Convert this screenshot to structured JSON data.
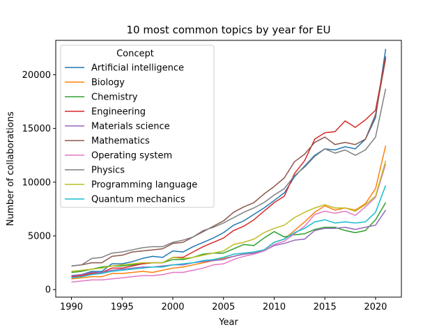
{
  "chart_data": {
    "type": "line",
    "title": "10 most common topics by year for EU",
    "xlabel": "Year",
    "ylabel": "Number of collaborations",
    "xlim": [
      1988.45,
      2022.55
    ],
    "ylim": [
      -700,
      23200
    ],
    "xticks": [
      1990,
      1995,
      2000,
      2005,
      2010,
      2015,
      2020
    ],
    "yticks": [
      0,
      5000,
      10000,
      15000,
      20000
    ],
    "grid": false,
    "legend": {
      "title": "Concept",
      "placement": "top-left"
    },
    "x": [
      1990,
      1991,
      1992,
      1993,
      1994,
      1995,
      1996,
      1997,
      1998,
      1999,
      2000,
      2001,
      2002,
      2003,
      2004,
      2005,
      2006,
      2007,
      2008,
      2009,
      2010,
      2011,
      2012,
      2013,
      2014,
      2015,
      2016,
      2017,
      2018,
      2019,
      2020,
      2021
    ],
    "series": [
      {
        "name": "Artificial intelligence",
        "color": "#1f77b4",
        "values": [
          1300,
          1400,
          1700,
          1700,
          2400,
          2400,
          2600,
          2900,
          3100,
          3000,
          3600,
          3500,
          4000,
          4400,
          4800,
          5300,
          6000,
          6400,
          7000,
          7600,
          8300,
          9000,
          10500,
          11500,
          12500,
          13100,
          13000,
          13300,
          13100,
          14000,
          16000,
          22400
        ]
      },
      {
        "name": "Biology",
        "color": "#ff7f0e",
        "values": [
          1000,
          1100,
          1200,
          1200,
          1500,
          1500,
          1600,
          1700,
          1600,
          1800,
          2000,
          2100,
          2300,
          2500,
          2700,
          2900,
          3100,
          3300,
          3400,
          3700,
          4400,
          4700,
          5500,
          6300,
          7200,
          7800,
          7400,
          7600,
          7400,
          8000,
          9400,
          13400
        ]
      },
      {
        "name": "Chemistry",
        "color": "#2ca02c",
        "values": [
          1600,
          1700,
          1900,
          2100,
          2200,
          2200,
          2300,
          2400,
          2500,
          2500,
          2800,
          2800,
          3000,
          3300,
          3400,
          3400,
          3800,
          4200,
          4100,
          4800,
          5400,
          4900,
          5100,
          5200,
          5600,
          5800,
          5800,
          5500,
          5300,
          5500,
          6500,
          8100
        ]
      },
      {
        "name": "Engineering",
        "color": "#d62728",
        "values": [
          1200,
          1300,
          1500,
          1600,
          2000,
          2000,
          2200,
          2400,
          2500,
          2500,
          3000,
          3000,
          3500,
          4000,
          4400,
          4800,
          5500,
          5900,
          6500,
          7300,
          8100,
          8700,
          10800,
          12000,
          14000,
          14600,
          14700,
          15700,
          15100,
          15800,
          16700,
          21700
        ]
      },
      {
        "name": "Materials science",
        "color": "#9467bd",
        "values": [
          1300,
          1400,
          1600,
          1600,
          1800,
          1900,
          2000,
          2100,
          2100,
          2200,
          2300,
          2300,
          2500,
          2600,
          2700,
          2800,
          3100,
          3300,
          3400,
          3600,
          4100,
          4300,
          4600,
          4700,
          5500,
          5700,
          5700,
          5800,
          5600,
          5800,
          6000,
          7400
        ]
      },
      {
        "name": "Mathematics",
        "color": "#8c564b",
        "values": [
          2200,
          2300,
          2500,
          2500,
          3100,
          3200,
          3500,
          3600,
          3700,
          3800,
          4300,
          4400,
          4900,
          5400,
          5900,
          6400,
          7200,
          7700,
          8100,
          8900,
          9600,
          10400,
          11900,
          12600,
          13700,
          14200,
          13500,
          13700,
          13500,
          14000,
          16300,
          21500
        ]
      },
      {
        "name": "Operating system",
        "color": "#e377c2",
        "values": [
          700,
          800,
          900,
          900,
          1000,
          1100,
          1200,
          1300,
          1300,
          1400,
          1600,
          1600,
          1800,
          2000,
          2300,
          2400,
          2800,
          3100,
          3300,
          3600,
          4200,
          4500,
          5200,
          5900,
          7000,
          7300,
          7100,
          7300,
          6900,
          7700,
          8600,
          11700
        ]
      },
      {
        "name": "Physics",
        "color": "#7f7f7f",
        "values": [
          2200,
          2300,
          2900,
          3000,
          3400,
          3500,
          3700,
          3900,
          4000,
          4000,
          4400,
          4600,
          4900,
          5500,
          5800,
          6200,
          6700,
          7200,
          7600,
          8100,
          8800,
          9400,
          10600,
          11400,
          12400,
          13100,
          12700,
          13000,
          12500,
          13000,
          14200,
          18700
        ]
      },
      {
        "name": "Programming language",
        "color": "#bcbd22",
        "values": [
          1700,
          1800,
          1900,
          2000,
          2200,
          2300,
          2400,
          2500,
          2500,
          2500,
          3000,
          2900,
          3000,
          3200,
          3400,
          3600,
          4200,
          4400,
          4700,
          5300,
          5700,
          6000,
          6700,
          7200,
          7600,
          7900,
          7600,
          7600,
          7300,
          7900,
          8700,
          12000
        ]
      },
      {
        "name": "Quantum mechanics",
        "color": "#17becf",
        "values": [
          1100,
          1200,
          1400,
          1500,
          1700,
          1800,
          1900,
          2000,
          2100,
          2100,
          2300,
          2400,
          2500,
          2700,
          2800,
          3000,
          3300,
          3400,
          3500,
          3700,
          4400,
          4700,
          5300,
          5700,
          6300,
          6500,
          6200,
          6300,
          6200,
          6300,
          7200,
          9700
        ]
      }
    ]
  }
}
